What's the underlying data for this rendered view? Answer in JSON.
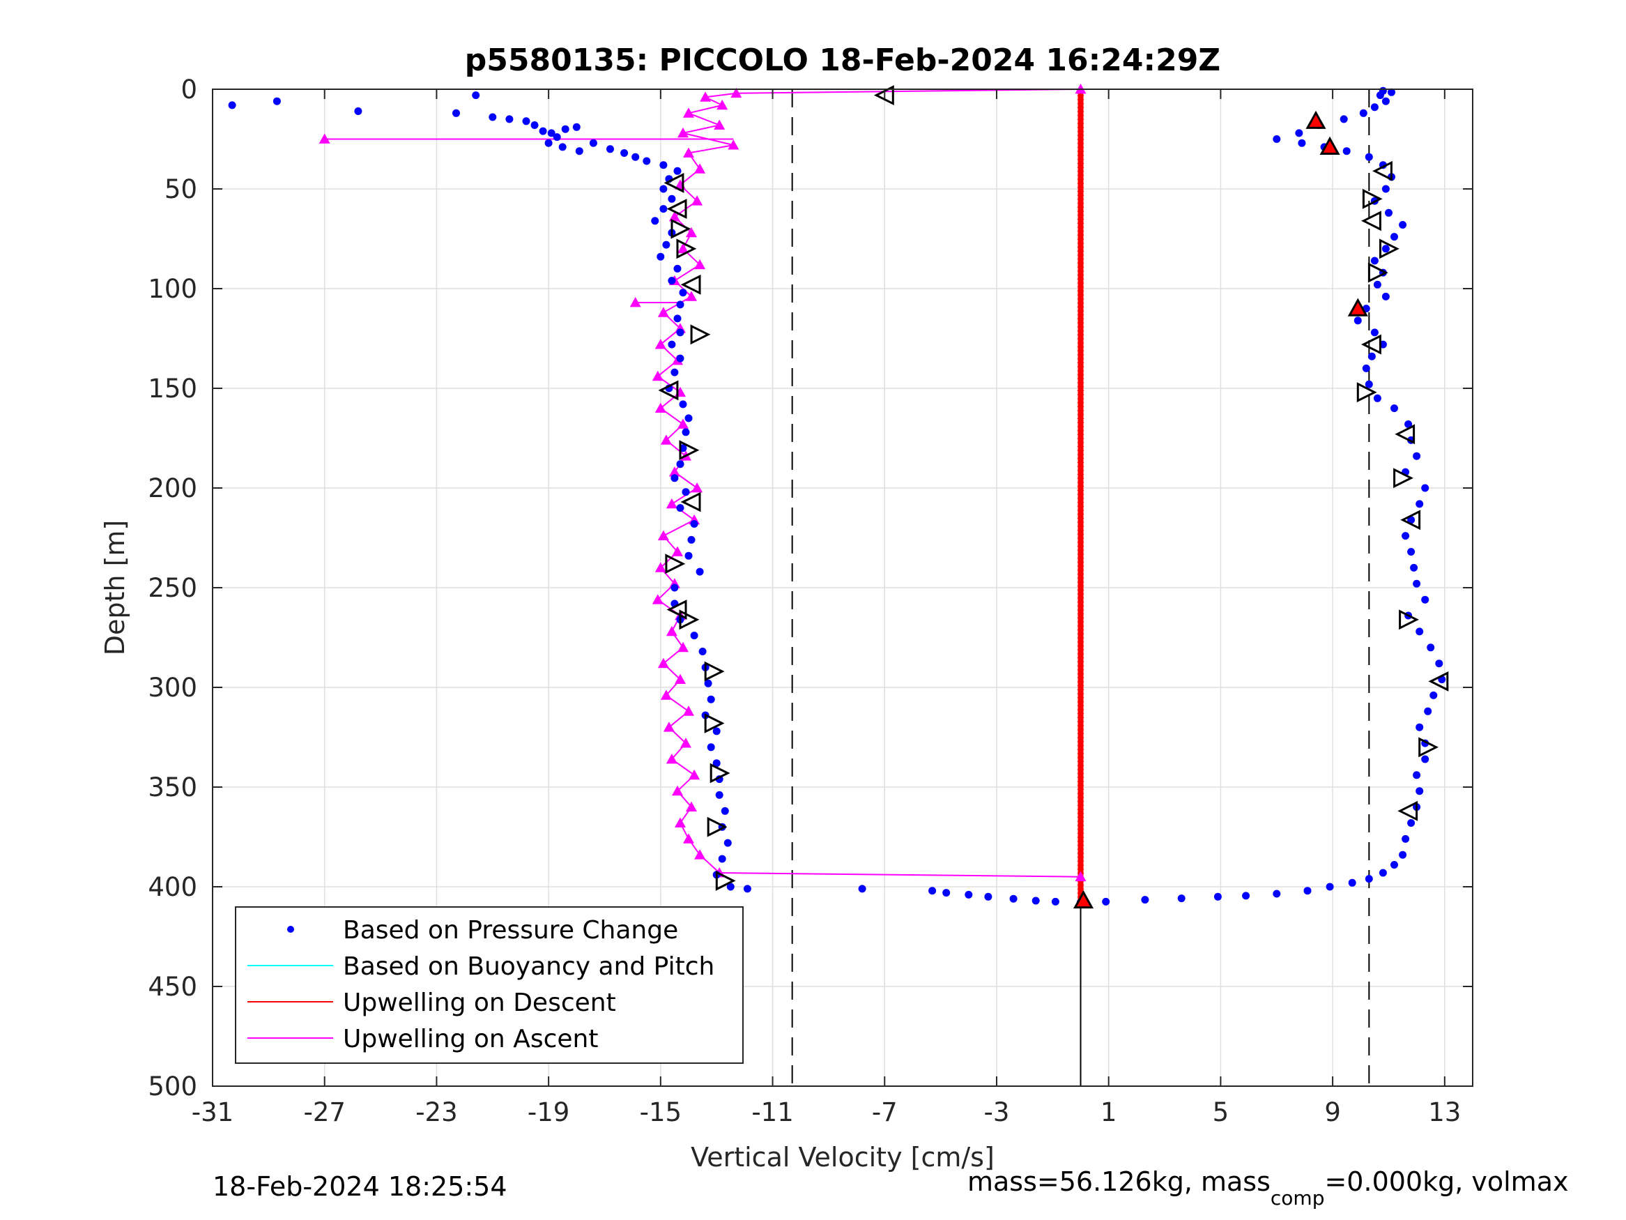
{
  "chart_data": {
    "type": "scatter",
    "title": "p5580135: PICCOLO 18-Feb-2024 16:24:29Z",
    "xlabel": "Vertical Velocity [cm/s]",
    "ylabel": "Depth [m]",
    "xlim": [
      -31,
      14
    ],
    "ylim": [
      0,
      500
    ],
    "y_reversed": true,
    "grid": true,
    "x_ticks": [
      -31,
      -27,
      -23,
      -19,
      -15,
      -11,
      -7,
      -3,
      1,
      5,
      9,
      13
    ],
    "y_ticks": [
      0,
      50,
      100,
      150,
      200,
      250,
      300,
      350,
      400,
      450,
      500
    ],
    "reference_lines": {
      "dashed_x": [
        -10.3,
        10.3
      ],
      "solid_x": [
        0
      ]
    },
    "legend": {
      "location": "bottom-left",
      "entries": [
        {
          "label": "Based on Pressure Change",
          "marker": "dot",
          "color": "#0000ff"
        },
        {
          "label": "Based on Buoyancy and Pitch",
          "marker": "line",
          "color": "#00ffff"
        },
        {
          "label": "Upwelling on Descent",
          "marker": "line",
          "color": "#ff0000"
        },
        {
          "label": "Upwelling on Ascent",
          "marker": "line",
          "color": "#ff00ff"
        }
      ]
    },
    "series": [
      {
        "name": "Based on Pressure Change",
        "color": "#0000ff",
        "style": "dots",
        "points": [
          [
            -30.3,
            8
          ],
          [
            -28.7,
            6
          ],
          [
            -25.8,
            11
          ],
          [
            -21.6,
            3
          ],
          [
            -22.3,
            12
          ],
          [
            -21.0,
            14
          ],
          [
            -20.4,
            15
          ],
          [
            -19.8,
            16
          ],
          [
            -19.5,
            18
          ],
          [
            -19.2,
            21
          ],
          [
            -18.9,
            22
          ],
          [
            -18.7,
            24
          ],
          [
            -18.4,
            20
          ],
          [
            -18.0,
            19
          ],
          [
            -19.0,
            27
          ],
          [
            -18.5,
            29
          ],
          [
            -17.9,
            31
          ],
          [
            -17.4,
            27
          ],
          [
            -16.8,
            30
          ],
          [
            -16.3,
            32
          ],
          [
            -15.9,
            34
          ],
          [
            -15.5,
            36
          ],
          [
            -14.9,
            38
          ],
          [
            -14.4,
            41
          ],
          [
            -14.7,
            45
          ],
          [
            -14.9,
            50
          ],
          [
            -14.6,
            55
          ],
          [
            -14.9,
            60
          ],
          [
            -15.2,
            66
          ],
          [
            -14.6,
            72
          ],
          [
            -14.8,
            78
          ],
          [
            -15.0,
            84
          ],
          [
            -14.4,
            90
          ],
          [
            -14.6,
            96
          ],
          [
            -14.2,
            102
          ],
          [
            -14.3,
            108
          ],
          [
            -14.4,
            115
          ],
          [
            -14.3,
            122
          ],
          [
            -14.6,
            128
          ],
          [
            -14.3,
            135
          ],
          [
            -14.5,
            142
          ],
          [
            -14.7,
            150
          ],
          [
            -14.2,
            158
          ],
          [
            -14.0,
            165
          ],
          [
            -14.1,
            172
          ],
          [
            -14.2,
            180
          ],
          [
            -14.3,
            188
          ],
          [
            -14.5,
            195
          ],
          [
            -14.1,
            202
          ],
          [
            -14.3,
            210
          ],
          [
            -13.8,
            218
          ],
          [
            -13.9,
            226
          ],
          [
            -14.0,
            234
          ],
          [
            -13.6,
            242
          ],
          [
            -14.5,
            250
          ],
          [
            -14.5,
            258
          ],
          [
            -14.3,
            266
          ],
          [
            -13.8,
            274
          ],
          [
            -13.5,
            282
          ],
          [
            -13.4,
            290
          ],
          [
            -13.3,
            298
          ],
          [
            -13.2,
            306
          ],
          [
            -13.4,
            314
          ],
          [
            -13.0,
            322
          ],
          [
            -13.2,
            330
          ],
          [
            -13.0,
            338
          ],
          [
            -12.9,
            346
          ],
          [
            -12.9,
            354
          ],
          [
            -12.7,
            362
          ],
          [
            -12.8,
            370
          ],
          [
            -12.6,
            378
          ],
          [
            -12.8,
            386
          ],
          [
            -13.0,
            394
          ],
          [
            -12.5,
            400
          ],
          [
            -11.9,
            401
          ],
          [
            -7.8,
            401
          ],
          [
            -5.3,
            402
          ],
          [
            -4.8,
            403
          ],
          [
            -4.0,
            404
          ],
          [
            -3.3,
            405
          ],
          [
            -2.4,
            406
          ],
          [
            -1.6,
            407
          ],
          [
            -0.9,
            407.5
          ],
          [
            0.0,
            407.8
          ],
          [
            0.9,
            407.5
          ],
          [
            2.3,
            406.5
          ],
          [
            3.6,
            405.8
          ],
          [
            4.9,
            405
          ],
          [
            5.9,
            404.5
          ],
          [
            7.0,
            403.5
          ],
          [
            8.1,
            402
          ],
          [
            8.9,
            400
          ],
          [
            9.7,
            398
          ],
          [
            10.3,
            396
          ],
          [
            10.8,
            393
          ],
          [
            11.2,
            389
          ],
          [
            11.5,
            384
          ],
          [
            11.6,
            376
          ],
          [
            11.8,
            368
          ],
          [
            12.0,
            360
          ],
          [
            12.1,
            352
          ],
          [
            12.0,
            344
          ],
          [
            12.3,
            336
          ],
          [
            12.3,
            328
          ],
          [
            12.1,
            320
          ],
          [
            12.4,
            312
          ],
          [
            12.6,
            304
          ],
          [
            12.9,
            296
          ],
          [
            12.8,
            288
          ],
          [
            12.5,
            280
          ],
          [
            12.1,
            272
          ],
          [
            11.7,
            264
          ],
          [
            12.3,
            256
          ],
          [
            12.0,
            248
          ],
          [
            11.9,
            240
          ],
          [
            11.8,
            232
          ],
          [
            11.6,
            224
          ],
          [
            11.8,
            216
          ],
          [
            12.1,
            208
          ],
          [
            12.3,
            200
          ],
          [
            11.6,
            192
          ],
          [
            12.0,
            184
          ],
          [
            11.8,
            176
          ],
          [
            11.7,
            168
          ],
          [
            11.2,
            160
          ],
          [
            10.6,
            155
          ],
          [
            10.3,
            148
          ],
          [
            10.2,
            140
          ],
          [
            10.4,
            134
          ],
          [
            10.8,
            128
          ],
          [
            10.5,
            122
          ],
          [
            9.9,
            116
          ],
          [
            10.2,
            110
          ],
          [
            10.9,
            104
          ],
          [
            10.6,
            98
          ],
          [
            10.8,
            92
          ],
          [
            10.5,
            86
          ],
          [
            10.9,
            80
          ],
          [
            11.2,
            74
          ],
          [
            11.5,
            68
          ],
          [
            11.0,
            62
          ],
          [
            10.5,
            56
          ],
          [
            10.9,
            50
          ],
          [
            11.1,
            44
          ],
          [
            10.8,
            38
          ],
          [
            10.3,
            34
          ],
          [
            9.5,
            31
          ],
          [
            8.7,
            29
          ],
          [
            7.9,
            27
          ],
          [
            7.0,
            25
          ],
          [
            7.8,
            22
          ],
          [
            8.5,
            18
          ],
          [
            9.4,
            15
          ],
          [
            10.1,
            12
          ],
          [
            10.5,
            9
          ],
          [
            10.9,
            6
          ],
          [
            10.7,
            3
          ],
          [
            11.1,
            1.5
          ],
          [
            10.8,
            0.8
          ]
        ]
      },
      {
        "name": "Based on Buoyancy and Pitch",
        "color": "#00ffff",
        "style": "line",
        "points": []
      },
      {
        "name": "Upwelling on Descent",
        "color": "#ff0000",
        "style": "triangles-line",
        "x": 0,
        "y_range": [
          0,
          407
        ],
        "highlighted_triangles": [
          [
            8.4,
            16
          ],
          [
            8.9,
            29
          ],
          [
            9.9,
            110
          ],
          [
            0.1,
            407
          ]
        ]
      },
      {
        "name": "Upwelling on Ascent",
        "color": "#ff00ff",
        "style": "triangles-line",
        "points": [
          [
            -12.9,
            393
          ],
          [
            -13.6,
            384
          ],
          [
            -14.0,
            376
          ],
          [
            -14.3,
            368
          ],
          [
            -13.9,
            360
          ],
          [
            -14.4,
            352
          ],
          [
            -13.8,
            344
          ],
          [
            -14.6,
            336
          ],
          [
            -14.1,
            328
          ],
          [
            -14.7,
            320
          ],
          [
            -14.0,
            312
          ],
          [
            -14.8,
            304
          ],
          [
            -14.3,
            296
          ],
          [
            -14.9,
            288
          ],
          [
            -14.2,
            280
          ],
          [
            -14.6,
            272
          ],
          [
            -14.3,
            264
          ],
          [
            -15.1,
            256
          ],
          [
            -14.5,
            248
          ],
          [
            -15.0,
            240
          ],
          [
            -14.4,
            232
          ],
          [
            -14.9,
            224
          ],
          [
            -13.8,
            216
          ],
          [
            -14.6,
            208
          ],
          [
            -13.7,
            200
          ],
          [
            -14.5,
            192
          ],
          [
            -14.1,
            184
          ],
          [
            -14.8,
            176
          ],
          [
            -14.2,
            168
          ],
          [
            -15.0,
            160
          ],
          [
            -14.3,
            152
          ],
          [
            -15.1,
            144
          ],
          [
            -14.4,
            136
          ],
          [
            -15.0,
            128
          ],
          [
            -14.3,
            120
          ],
          [
            -14.9,
            112
          ],
          [
            -13.9,
            104
          ],
          [
            -14.5,
            96
          ],
          [
            -13.6,
            88
          ],
          [
            -14.2,
            80
          ],
          [
            -13.9,
            72
          ],
          [
            -14.5,
            64
          ],
          [
            -13.7,
            56
          ],
          [
            -14.3,
            48
          ],
          [
            -13.6,
            40
          ],
          [
            -14.0,
            32
          ],
          [
            -12.4,
            28
          ],
          [
            -14.2,
            22
          ],
          [
            -12.9,
            18
          ],
          [
            -14.0,
            12
          ],
          [
            -12.8,
            8
          ],
          [
            -13.4,
            4
          ],
          [
            -12.3,
            2
          ]
        ],
        "outliers": [
          [
            -27.0,
            25
          ],
          [
            -15.9,
            107
          ],
          [
            0.0,
            395
          ],
          [
            0.0,
            0
          ]
        ]
      },
      {
        "name": "",
        "color": "#000000",
        "style": "open-triangles",
        "points": [
          [
            -7.0,
            3,
            "left"
          ],
          [
            -14.5,
            47,
            "left"
          ],
          [
            -14.4,
            60,
            "left"
          ],
          [
            -14.3,
            70,
            "right"
          ],
          [
            -14.1,
            80,
            "right"
          ],
          [
            -13.9,
            98,
            "left"
          ],
          [
            -13.6,
            123,
            "right"
          ],
          [
            -14.7,
            151,
            "left"
          ],
          [
            -14.0,
            181,
            "right"
          ],
          [
            -13.9,
            207,
            "left"
          ],
          [
            -14.5,
            238,
            "right"
          ],
          [
            -14.4,
            261,
            "left"
          ],
          [
            -14.0,
            266,
            "right"
          ],
          [
            -13.1,
            292,
            "right"
          ],
          [
            -13.1,
            318,
            "right"
          ],
          [
            -12.9,
            343,
            "right"
          ],
          [
            -13.0,
            370,
            "right"
          ],
          [
            -12.7,
            397,
            "right"
          ],
          [
            10.8,
            41,
            "left"
          ],
          [
            10.4,
            55,
            "right"
          ],
          [
            10.4,
            66,
            "left"
          ],
          [
            11.0,
            80,
            "right"
          ],
          [
            10.6,
            92,
            "right"
          ],
          [
            10.4,
            128,
            "left"
          ],
          [
            10.2,
            152,
            "right"
          ],
          [
            11.6,
            173,
            "left"
          ],
          [
            11.5,
            195,
            "right"
          ],
          [
            11.8,
            216,
            "left"
          ],
          [
            11.7,
            266,
            "right"
          ],
          [
            12.8,
            297,
            "left"
          ],
          [
            12.4,
            330,
            "right"
          ],
          [
            11.7,
            362,
            "left"
          ]
        ]
      }
    ]
  },
  "footer": {
    "timestamp": "18-Feb-2024 18:25:54",
    "mass_prefix": "mass=56.126kg, mass",
    "mass_sub": "comp",
    "mass_suffix": "=0.000kg, volmax"
  }
}
